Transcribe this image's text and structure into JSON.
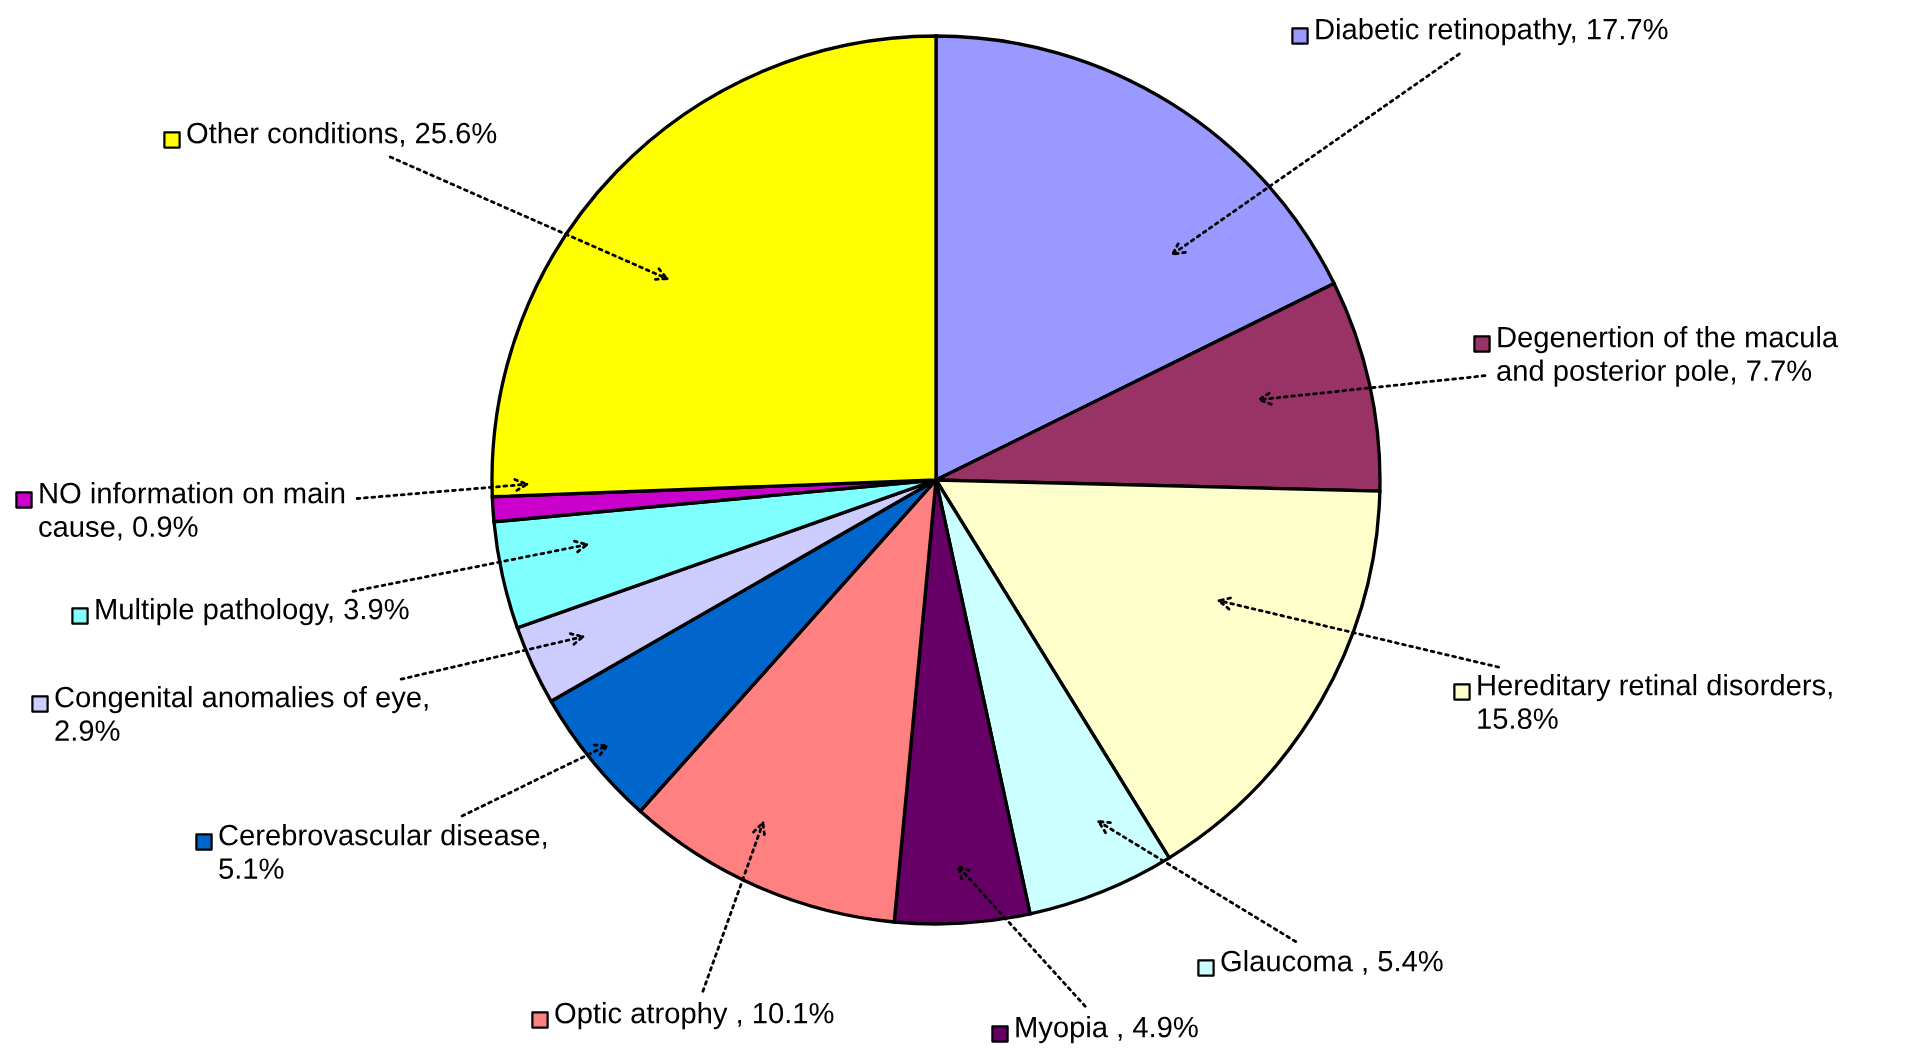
{
  "chart_data": {
    "type": "pie",
    "legend": "right",
    "categories": [
      "Diabetic retinopathy, 17.7%",
      "Degenertion of the macula\nand posterior pole, 7.7%",
      "Hereditary retinal disorders,\n15.8%",
      "Glaucoma , 5.4%",
      "Myopia , 4.9%",
      "Optic atrophy , 10.1%",
      "Cerebrovascular disease,\n5.1%",
      "Congenital anomalies of eye,\n2.9%",
      "Multiple pathology, 3.9%",
      "NO information on main\ncause, 0.9%",
      "Other conditions, 25.6%"
    ],
    "values": [
      17.7,
      7.7,
      15.8,
      5.4,
      4.9,
      10.1,
      5.1,
      2.9,
      3.9,
      0.9,
      25.6
    ],
    "colors": [
      "#9999ff",
      "#993366",
      "#ffffcc",
      "#ccffff",
      "#660066",
      "#ff8080",
      "#0066cc",
      "#ccccff",
      "#80ffff",
      "#cc00cc",
      "#ffff00"
    ]
  }
}
